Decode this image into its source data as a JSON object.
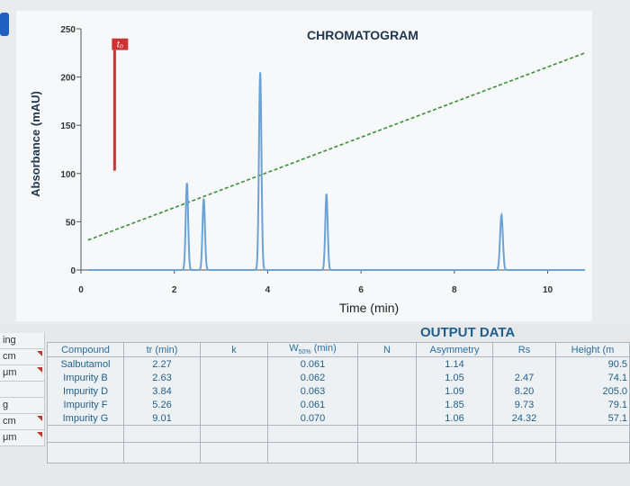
{
  "chart_data": {
    "type": "line",
    "title": "CHROMATOGRAM",
    "xlabel": "Time (min)",
    "ylabel": "Absorbance (mAU)",
    "xlim": [
      0,
      10.8
    ],
    "ylim": [
      0,
      250
    ],
    "xticks": [
      0,
      2,
      4,
      6,
      8,
      10
    ],
    "yticks": [
      0,
      50,
      100,
      150,
      200,
      250
    ],
    "t0_label": "t₀",
    "t0_marker": {
      "x": 0.72,
      "y_bottom": 103,
      "y_top": 228
    },
    "gradient_line": {
      "x": [
        0.15,
        10.8
      ],
      "y": [
        31,
        225
      ]
    },
    "peaks": [
      {
        "x": 2.27,
        "height": 90.5,
        "width": 0.061
      },
      {
        "x": 2.63,
        "height": 74.1,
        "width": 0.062
      },
      {
        "x": 3.84,
        "height": 205.0,
        "width": 0.063
      },
      {
        "x": 5.26,
        "height": 79.1,
        "width": 0.061
      },
      {
        "x": 9.01,
        "height": 57.1,
        "width": 0.07
      }
    ],
    "baseline": 0
  },
  "output": {
    "title": "OUTPUT DATA",
    "headers": [
      "Compound",
      "tr (min)",
      "k",
      "W50% (min)",
      "N",
      "Asymmetry",
      "Rs",
      "Height (m"
    ],
    "rows": [
      [
        "Salbutamol",
        "2.27",
        "",
        "0.061",
        "",
        "1.14",
        "",
        "90.5"
      ],
      [
        "Impurity B",
        "2.63",
        "",
        "0.062",
        "",
        "1.05",
        "2.47",
        "74.1"
      ],
      [
        "Impurity D",
        "3.84",
        "",
        "0.063",
        "",
        "1.09",
        "8.20",
        "205.0"
      ],
      [
        "Impurity F",
        "5.26",
        "",
        "0.061",
        "",
        "1.85",
        "9.73",
        "79.1"
      ],
      [
        "Impurity G",
        "9.01",
        "",
        "0.070",
        "",
        "1.06",
        "24.32",
        "57.1"
      ]
    ]
  },
  "left_cells": [
    "ing",
    "cm",
    "μm",
    "",
    "g",
    "cm",
    "μm"
  ]
}
